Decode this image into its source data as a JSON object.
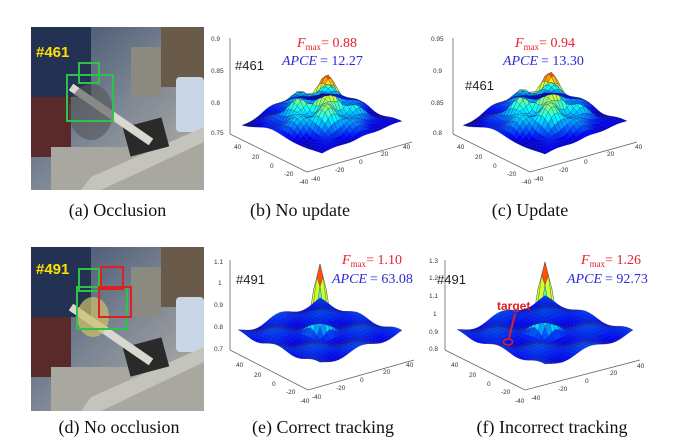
{
  "panels": [
    {
      "id": "a",
      "frame": "#461",
      "caption": "(a)  Occlusion"
    },
    {
      "id": "b",
      "frame": "#461",
      "fmax": "= 0.88",
      "apce": "= 12.27",
      "caption": "(b)  No update",
      "zticks": [
        "0.9",
        "0.85",
        "0.8",
        "0.75"
      ],
      "xticks": [
        "40",
        "20",
        "0",
        "-20",
        "-40"
      ],
      "yticks": [
        "40",
        "20",
        "0",
        "-20",
        "-40"
      ]
    },
    {
      "id": "c",
      "frame": "#461",
      "fmax": "= 0.94",
      "apce": "= 13.30",
      "caption": "(c)  Update",
      "zticks": [
        "0.95",
        "0.9",
        "0.85",
        "0.8"
      ],
      "xticks": [
        "40",
        "20",
        "0",
        "-20",
        "-40"
      ],
      "yticks": [
        "40",
        "20",
        "0",
        "-20",
        "-40"
      ]
    },
    {
      "id": "d",
      "frame": "#491",
      "caption": "(d)  No occlusion"
    },
    {
      "id": "e",
      "frame": "#491",
      "fmax": "= 1.10",
      "apce": "= 63.08",
      "caption": "(e)  Correct tracking",
      "zticks": [
        "1.1",
        "1",
        "0.9",
        "0.8",
        "0.7"
      ],
      "xticks": [
        "40",
        "20",
        "0",
        "-20",
        "-40"
      ],
      "yticks": [
        "40",
        "20",
        "0",
        "-20",
        "-40"
      ]
    },
    {
      "id": "f",
      "frame": "#491",
      "fmax": "= 1.26",
      "apce": "= 92.73",
      "caption": "(f)  Incorrect tracking",
      "annotation": "target",
      "zticks": [
        "1.3",
        "1.2",
        "1.1",
        "1",
        "0.9",
        "0.8"
      ],
      "xticks": [
        "40",
        "20",
        "0",
        "-20",
        "-40"
      ],
      "yticks": [
        "40",
        "20",
        "0",
        "-20",
        "-40"
      ]
    }
  ],
  "labels": {
    "f": "F",
    "fsub": "max",
    "apce": "APCE"
  },
  "colors": {
    "fmax": "#e8202a",
    "apce": "#2b2bd8",
    "box_green": "#2fc24a",
    "box_red": "#e02020",
    "frame_label": "#ffe000"
  }
}
